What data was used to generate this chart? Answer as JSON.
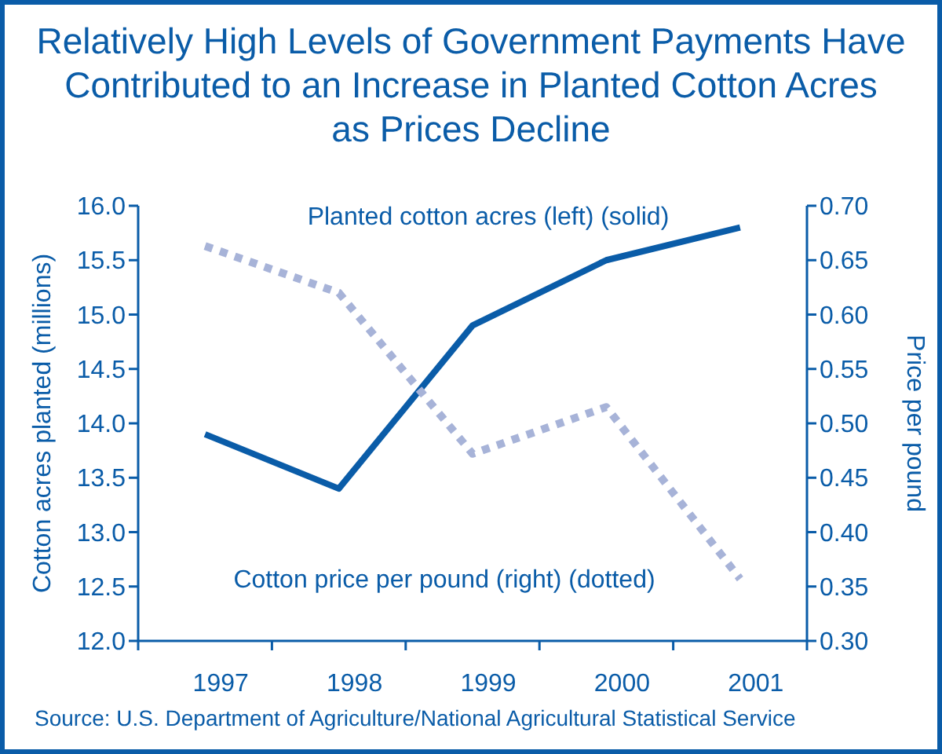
{
  "chart_data": {
    "type": "line",
    "title": "Relatively High Levels of Government Payments Have Contributed to an Increase in Planted Cotton Acres as Prices Decline",
    "categories": [
      "1997",
      "1998",
      "1999",
      "2000",
      "2001"
    ],
    "series": [
      {
        "name": "Planted cotton acres (left) (solid)",
        "color": "#0a5ca8",
        "values": [
          13.9,
          13.4,
          14.9,
          15.5,
          15.8
        ],
        "line_style": "solid"
      },
      {
        "name": "Cotton price per pound (right) (dotted)",
        "color": "#a7b3d8",
        "values": [
          0.663,
          0.62,
          0.472,
          0.515,
          0.357
        ],
        "axis": "y2",
        "line_style": "dotted"
      }
    ],
    "ylabel": "Cotton acres planted (millions)",
    "y2label": "Price per pound",
    "ylim": [
      12,
      16
    ],
    "yticks": [
      {
        "value": 12,
        "label": "12.0"
      },
      12.5,
      {
        "value": 13,
        "label": "13.0"
      },
      13.5,
      {
        "value": 14,
        "label": "14.0"
      },
      14.5,
      {
        "value": 15,
        "label": "15.0"
      },
      15.5,
      {
        "value": 16,
        "label": "16.0"
      }
    ],
    "y2lim": [
      0.3,
      0.7
    ],
    "y2ticks": [
      {
        "value": 0.3,
        "label": "0.30"
      },
      0.35,
      {
        "value": 0.4,
        "label": "0.40"
      },
      0.45,
      {
        "value": 0.5,
        "label": "0.50"
      },
      0.55,
      {
        "value": 0.6,
        "label": "0.60"
      },
      0.65,
      {
        "value": 0.7,
        "label": "0.70"
      }
    ],
    "grid": false,
    "annotations": [
      "Source: U.S. Department of Agriculture/National Agricultural Statistical Service"
    ]
  }
}
